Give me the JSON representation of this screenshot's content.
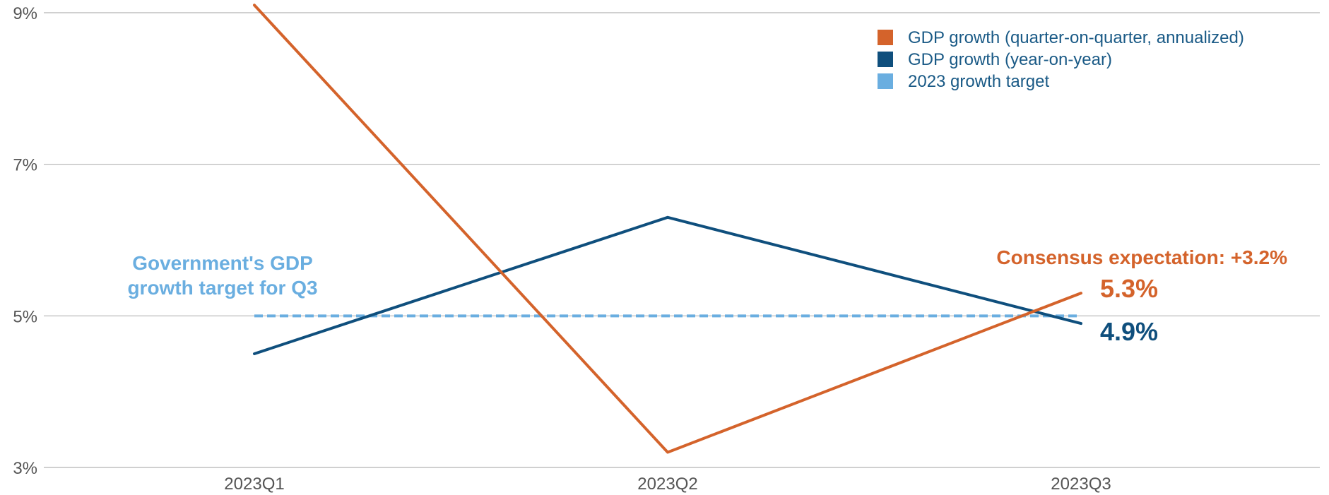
{
  "chart_data": {
    "type": "line",
    "categories": [
      "2023Q1",
      "2023Q2",
      "2023Q3"
    ],
    "ylim": [
      3,
      9
    ],
    "y_ticks": [
      3,
      5,
      7,
      9
    ],
    "y_tick_labels": [
      "3%",
      "5%",
      "7%",
      "9%"
    ],
    "grid": true,
    "legend_position": "top-right",
    "series": [
      {
        "name": "GDP growth (quarter-on-quarter, annualized)",
        "values": [
          9.1,
          3.2,
          5.3
        ],
        "color": "#d4632b",
        "style": "solid"
      },
      {
        "name": "GDP growth (year-on-year)",
        "values": [
          4.5,
          6.3,
          4.9
        ],
        "color": "#0f4f7d",
        "style": "solid"
      },
      {
        "name": "2023 growth target",
        "values": [
          5.0,
          5.0,
          5.0
        ],
        "color": "#6aaee0",
        "style": "dashed"
      }
    ],
    "annotations": {
      "target_label_line1": "Government's GDP",
      "target_label_line2": "growth target for Q3",
      "consensus": "Consensus expectation: +3.2%",
      "qoq_end_label": "5.3%",
      "yoy_end_label": "4.9%"
    }
  }
}
